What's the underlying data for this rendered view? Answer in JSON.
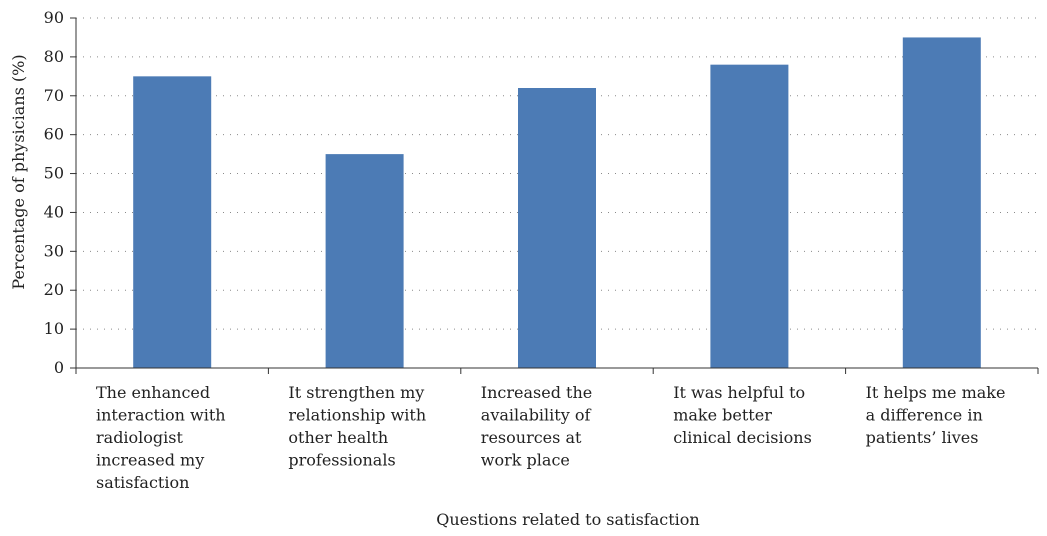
{
  "chart_data": {
    "type": "bar",
    "title": "",
    "xlabel": "Questions related to satisfaction",
    "ylabel": "Percentage of physicians (%)",
    "ylim": [
      0,
      90
    ],
    "yticks": [
      0,
      10,
      20,
      30,
      40,
      50,
      60,
      70,
      80,
      90
    ],
    "grid": true,
    "categories": [
      [
        "The enhanced",
        "interaction with",
        "radiologist",
        "increased my",
        "satisfaction"
      ],
      [
        "It strengthen my",
        "relationship with",
        "other health",
        "professionals"
      ],
      [
        "Increased the",
        "availability of",
        "resources at",
        "work place"
      ],
      [
        "It was helpful to",
        "make better",
        "clinical decisions"
      ],
      [
        "It helps me make",
        "a difference in",
        "patients’ lives"
      ]
    ],
    "values": [
      75,
      55,
      72,
      78,
      85
    ],
    "colors": {
      "bar": "#4c7bb5"
    }
  }
}
